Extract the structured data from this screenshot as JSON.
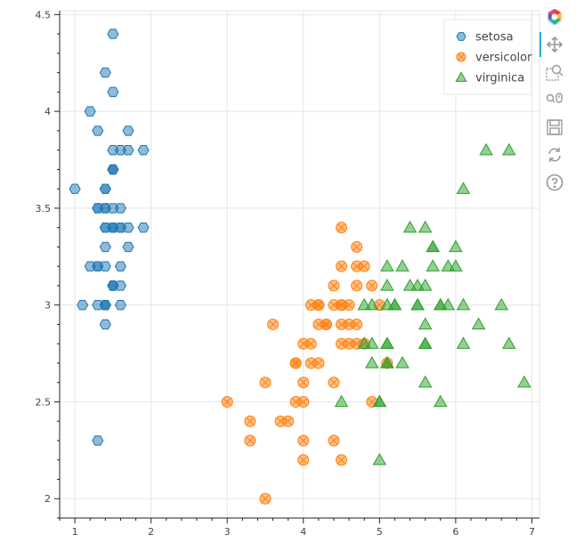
{
  "chart_data": {
    "type": "scatter",
    "xlim": [
      0.8,
      7.1
    ],
    "ylim": [
      1.9,
      4.52
    ],
    "x_ticks": [
      1,
      2,
      3,
      4,
      5,
      6,
      7
    ],
    "y_ticks": [
      2,
      2.5,
      3,
      3.5,
      4,
      4.5
    ],
    "x_tick_labels": [
      "1",
      "2",
      "3",
      "4",
      "5",
      "6",
      "7"
    ],
    "y_tick_labels": [
      "2",
      "2.5",
      "3",
      "3.5",
      "4",
      "4.5"
    ],
    "grid": true,
    "legend_position": "top-right",
    "series": [
      {
        "name": "setosa",
        "marker": "hex",
        "color": "#1f77b4",
        "points": [
          [
            1.4,
            3.5
          ],
          [
            1.4,
            3.0
          ],
          [
            1.3,
            3.2
          ],
          [
            1.5,
            3.1
          ],
          [
            1.4,
            3.6
          ],
          [
            1.7,
            3.9
          ],
          [
            1.4,
            3.4
          ],
          [
            1.5,
            3.4
          ],
          [
            1.4,
            2.9
          ],
          [
            1.5,
            3.1
          ],
          [
            1.5,
            3.7
          ],
          [
            1.6,
            3.4
          ],
          [
            1.4,
            3.0
          ],
          [
            1.1,
            3.0
          ],
          [
            1.2,
            4.0
          ],
          [
            1.5,
            4.4
          ],
          [
            1.3,
            3.9
          ],
          [
            1.4,
            3.5
          ],
          [
            1.7,
            3.8
          ],
          [
            1.5,
            3.8
          ],
          [
            1.7,
            3.4
          ],
          [
            1.5,
            3.7
          ],
          [
            1.0,
            3.6
          ],
          [
            1.7,
            3.3
          ],
          [
            1.9,
            3.4
          ],
          [
            1.6,
            3.0
          ],
          [
            1.6,
            3.4
          ],
          [
            1.5,
            3.5
          ],
          [
            1.4,
            3.4
          ],
          [
            1.6,
            3.2
          ],
          [
            1.6,
            3.1
          ],
          [
            1.5,
            3.4
          ],
          [
            1.5,
            4.1
          ],
          [
            1.4,
            4.2
          ],
          [
            1.5,
            3.1
          ],
          [
            1.2,
            3.2
          ],
          [
            1.3,
            3.5
          ],
          [
            1.4,
            3.6
          ],
          [
            1.3,
            3.0
          ],
          [
            1.5,
            3.4
          ],
          [
            1.3,
            3.5
          ],
          [
            1.3,
            2.3
          ],
          [
            1.3,
            3.2
          ],
          [
            1.6,
            3.5
          ],
          [
            1.9,
            3.8
          ],
          [
            1.4,
            3.0
          ],
          [
            1.6,
            3.8
          ],
          [
            1.4,
            3.2
          ],
          [
            1.5,
            3.7
          ],
          [
            1.4,
            3.3
          ]
        ]
      },
      {
        "name": "versicolor",
        "marker": "circle_x",
        "color": "#ff7f0e",
        "points": [
          [
            4.7,
            3.2
          ],
          [
            4.5,
            3.2
          ],
          [
            4.9,
            3.1
          ],
          [
            4.0,
            2.3
          ],
          [
            4.6,
            2.8
          ],
          [
            4.5,
            2.8
          ],
          [
            4.7,
            3.3
          ],
          [
            3.3,
            2.4
          ],
          [
            4.6,
            2.9
          ],
          [
            3.9,
            2.7
          ],
          [
            3.5,
            2.0
          ],
          [
            4.2,
            3.0
          ],
          [
            4.0,
            2.2
          ],
          [
            4.7,
            2.9
          ],
          [
            3.6,
            2.9
          ],
          [
            4.4,
            3.1
          ],
          [
            4.5,
            3.0
          ],
          [
            4.1,
            2.7
          ],
          [
            4.5,
            2.2
          ],
          [
            3.9,
            2.5
          ],
          [
            4.8,
            3.2
          ],
          [
            4.0,
            2.8
          ],
          [
            4.9,
            2.5
          ],
          [
            4.7,
            2.8
          ],
          [
            4.3,
            2.9
          ],
          [
            4.4,
            3.0
          ],
          [
            4.8,
            2.8
          ],
          [
            5.0,
            3.0
          ],
          [
            4.5,
            2.9
          ],
          [
            3.5,
            2.6
          ],
          [
            3.8,
            2.4
          ],
          [
            3.7,
            2.4
          ],
          [
            3.9,
            2.7
          ],
          [
            5.1,
            2.7
          ],
          [
            4.5,
            3.0
          ],
          [
            4.5,
            3.4
          ],
          [
            4.7,
            3.1
          ],
          [
            4.4,
            2.3
          ],
          [
            4.1,
            3.0
          ],
          [
            4.0,
            2.5
          ],
          [
            4.4,
            2.6
          ],
          [
            4.6,
            3.0
          ],
          [
            4.0,
            2.6
          ],
          [
            3.3,
            2.3
          ],
          [
            4.2,
            2.7
          ],
          [
            4.2,
            3.0
          ],
          [
            4.2,
            2.9
          ],
          [
            4.3,
            2.9
          ],
          [
            3.0,
            2.5
          ],
          [
            4.1,
            2.8
          ]
        ]
      },
      {
        "name": "virginica",
        "marker": "triangle",
        "color": "#2ca02c",
        "points": [
          [
            6.0,
            3.3
          ],
          [
            5.1,
            2.7
          ],
          [
            5.9,
            3.0
          ],
          [
            5.6,
            2.9
          ],
          [
            5.8,
            3.0
          ],
          [
            6.6,
            3.0
          ],
          [
            4.5,
            2.5
          ],
          [
            6.3,
            2.9
          ],
          [
            5.8,
            2.5
          ],
          [
            6.1,
            3.6
          ],
          [
            5.1,
            3.2
          ],
          [
            5.3,
            2.7
          ],
          [
            5.5,
            3.0
          ],
          [
            5.0,
            2.5
          ],
          [
            5.1,
            2.8
          ],
          [
            5.3,
            3.2
          ],
          [
            5.5,
            3.0
          ],
          [
            6.7,
            3.8
          ],
          [
            6.9,
            2.6
          ],
          [
            5.0,
            2.2
          ],
          [
            5.7,
            3.2
          ],
          [
            4.9,
            2.8
          ],
          [
            6.7,
            2.8
          ],
          [
            4.9,
            2.7
          ],
          [
            5.7,
            3.3
          ],
          [
            6.0,
            3.2
          ],
          [
            4.8,
            2.8
          ],
          [
            4.9,
            3.0
          ],
          [
            5.6,
            2.8
          ],
          [
            5.8,
            3.0
          ],
          [
            6.1,
            2.8
          ],
          [
            6.4,
            3.8
          ],
          [
            5.6,
            2.8
          ],
          [
            5.1,
            2.8
          ],
          [
            5.6,
            2.6
          ],
          [
            6.1,
            3.0
          ],
          [
            5.6,
            3.4
          ],
          [
            5.5,
            3.1
          ],
          [
            4.8,
            3.0
          ],
          [
            5.4,
            3.1
          ],
          [
            5.6,
            3.1
          ],
          [
            5.1,
            3.1
          ],
          [
            5.1,
            2.7
          ],
          [
            5.9,
            3.2
          ],
          [
            5.7,
            3.3
          ],
          [
            5.2,
            3.0
          ],
          [
            5.0,
            2.5
          ],
          [
            5.2,
            3.0
          ],
          [
            5.4,
            3.4
          ],
          [
            5.1,
            3.0
          ]
        ]
      }
    ]
  },
  "legend": {
    "items": [
      "setosa",
      "versicolor",
      "virginica"
    ]
  },
  "toolbar": {
    "tools": [
      "bokeh-logo-icon",
      "pan-icon",
      "box-zoom-icon",
      "wheel-zoom-icon",
      "save-icon",
      "reset-icon",
      "help-icon"
    ]
  }
}
